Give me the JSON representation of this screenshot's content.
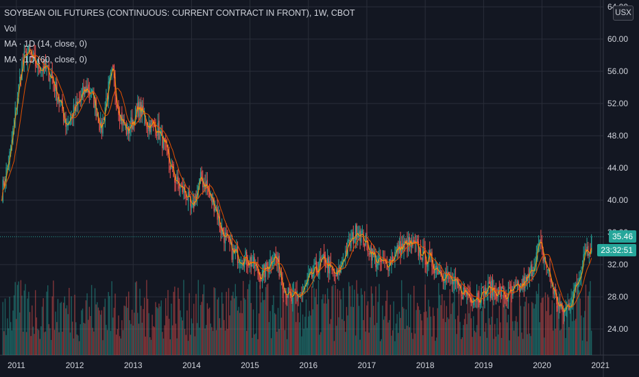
{
  "legend": {
    "title": "SOYBEAN OIL FUTURES (CONTINUOUS: CURRENT CONTRACT IN FRONT), 1W, CBOT",
    "vol": "Vol",
    "ma1": "MA · 1D (14, close, 0)",
    "ma2": "MA · 1D (60, close, 0)"
  },
  "currency_button": "USX",
  "last_price": "35.46",
  "countdown": "23:32:51",
  "colors": {
    "background": "#131722",
    "grid": "#2a2e39",
    "up": "#26a69a",
    "down": "#ef5350",
    "ma14": "#ff9800",
    "ma60": "#e65100",
    "axis_text": "#d1d4dc"
  },
  "chart_data": {
    "type": "candlestick",
    "ylim": [
      22,
      64
    ],
    "y_ticks": [
      "64.00",
      "60.00",
      "56.00",
      "52.00",
      "48.00",
      "44.00",
      "40.00",
      "36.00",
      "32.00",
      "28.00",
      "24.00"
    ],
    "x_ticks": [
      "2011",
      "2012",
      "2013",
      "2014",
      "2015",
      "2016",
      "2017",
      "2018",
      "2019",
      "2020",
      "2021"
    ],
    "x_tick_years": [
      2011,
      2012,
      2013,
      2014,
      2015,
      2016,
      2017,
      2018,
      2019,
      2020,
      2021
    ],
    "x_range": [
      2010.72,
      2021.05
    ],
    "series": [
      {
        "name": "SOYBEAN OIL FUTURES",
        "close_keypoints": [
          [
            2010.75,
            41.0
          ],
          [
            2010.9,
            46.0
          ],
          [
            2011.0,
            52.0
          ],
          [
            2011.1,
            57.0
          ],
          [
            2011.2,
            58.5
          ],
          [
            2011.3,
            57.0
          ],
          [
            2011.45,
            56.5
          ],
          [
            2011.6,
            55.5
          ],
          [
            2011.75,
            52.0
          ],
          [
            2011.85,
            49.5
          ],
          [
            2011.95,
            50.5
          ],
          [
            2012.1,
            52.5
          ],
          [
            2012.2,
            54.0
          ],
          [
            2012.3,
            53.0
          ],
          [
            2012.4,
            50.5
          ],
          [
            2012.45,
            48.5
          ],
          [
            2012.55,
            53.0
          ],
          [
            2012.65,
            56.0
          ],
          [
            2012.7,
            53.0
          ],
          [
            2012.8,
            50.0
          ],
          [
            2012.9,
            48.5
          ],
          [
            2013.0,
            50.0
          ],
          [
            2013.1,
            51.5
          ],
          [
            2013.25,
            49.5
          ],
          [
            2013.4,
            49.0
          ],
          [
            2013.5,
            47.5
          ],
          [
            2013.6,
            45.0
          ],
          [
            2013.75,
            42.0
          ],
          [
            2013.9,
            41.0
          ],
          [
            2014.0,
            38.5
          ],
          [
            2014.05,
            40.0
          ],
          [
            2014.15,
            42.5
          ],
          [
            2014.25,
            42.0
          ],
          [
            2014.3,
            40.5
          ],
          [
            2014.4,
            39.5
          ],
          [
            2014.5,
            36.5
          ],
          [
            2014.6,
            35.0
          ],
          [
            2014.7,
            33.5
          ],
          [
            2014.85,
            33.0
          ],
          [
            2015.0,
            32.5
          ],
          [
            2015.1,
            31.5
          ],
          [
            2015.2,
            30.5
          ],
          [
            2015.35,
            32.5
          ],
          [
            2015.4,
            33.5
          ],
          [
            2015.5,
            31.5
          ],
          [
            2015.6,
            29.0
          ],
          [
            2015.7,
            27.5
          ],
          [
            2015.8,
            28.0
          ],
          [
            2015.9,
            28.5
          ],
          [
            2016.0,
            30.0
          ],
          [
            2016.1,
            31.0
          ],
          [
            2016.2,
            32.0
          ],
          [
            2016.3,
            32.5
          ],
          [
            2016.4,
            31.0
          ],
          [
            2016.5,
            30.5
          ],
          [
            2016.6,
            33.0
          ],
          [
            2016.7,
            34.5
          ],
          [
            2016.85,
            36.5
          ],
          [
            2016.95,
            35.0
          ],
          [
            2017.05,
            34.0
          ],
          [
            2017.15,
            32.5
          ],
          [
            2017.3,
            32.0
          ],
          [
            2017.4,
            32.5
          ],
          [
            2017.55,
            34.0
          ],
          [
            2017.7,
            34.5
          ],
          [
            2017.85,
            34.0
          ],
          [
            2018.0,
            33.0
          ],
          [
            2018.15,
            32.0
          ],
          [
            2018.3,
            31.0
          ],
          [
            2018.45,
            30.0
          ],
          [
            2018.55,
            29.0
          ],
          [
            2018.7,
            28.5
          ],
          [
            2018.85,
            28.0
          ],
          [
            2019.0,
            28.5
          ],
          [
            2019.1,
            29.0
          ],
          [
            2019.3,
            28.5
          ],
          [
            2019.4,
            28.0
          ],
          [
            2019.5,
            28.5
          ],
          [
            2019.6,
            29.0
          ],
          [
            2019.75,
            30.0
          ],
          [
            2019.85,
            32.0
          ],
          [
            2019.95,
            34.5
          ],
          [
            2020.05,
            32.5
          ],
          [
            2020.15,
            30.0
          ],
          [
            2020.25,
            27.5
          ],
          [
            2020.35,
            26.0
          ],
          [
            2020.45,
            27.0
          ],
          [
            2020.55,
            28.5
          ],
          [
            2020.65,
            31.0
          ],
          [
            2020.7,
            33.0
          ],
          [
            2020.75,
            34.5
          ],
          [
            2020.8,
            33.0
          ],
          [
            2020.85,
            35.46
          ]
        ],
        "last": 35.46
      }
    ],
    "indicators": [
      {
        "name": "MA · 1D (14, close, 0)"
      },
      {
        "name": "MA · 1D (60, close, 0)"
      }
    ]
  }
}
